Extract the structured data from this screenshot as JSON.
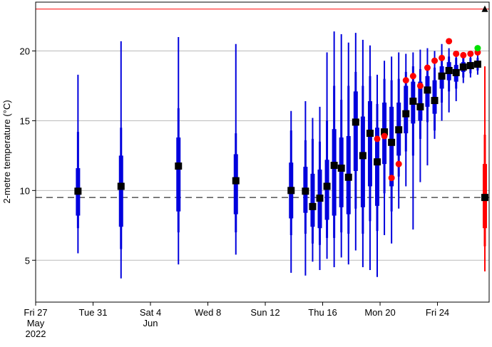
{
  "chart_data": {
    "type": "boxplot-forecast",
    "ylabel": "2-metre temperature (°C)",
    "xlabel": "",
    "ylim": [
      2,
      23.5
    ],
    "xlim": [
      0,
      31.6
    ],
    "y_ticks": [
      5,
      10,
      15,
      20
    ],
    "x_ticks": [
      {
        "day": 0,
        "label": [
          "Fri 27",
          "May",
          "2022"
        ]
      },
      {
        "day": 4,
        "label": [
          "Tue 31"
        ]
      },
      {
        "day": 8,
        "label": [
          "Sat 4",
          "Jun"
        ]
      },
      {
        "day": 12,
        "label": [
          "Wed 8"
        ]
      },
      {
        "day": 16,
        "label": [
          "Sun 12"
        ]
      },
      {
        "day": 20,
        "label": [
          "Thu 16"
        ]
      },
      {
        "day": 24,
        "label": [
          "Mon 20"
        ]
      },
      {
        "day": 28,
        "label": [
          "Fri 24"
        ]
      }
    ],
    "reference_lines": {
      "upper_red_line": 23,
      "dashed_climatology": 9.5
    },
    "boxes": [
      {
        "day": 2.95,
        "min": 5.5,
        "p10": 7.3,
        "p25": 8.2,
        "median": 9.95,
        "p75": 11.6,
        "p90": 14.2,
        "max": 18.3
      },
      {
        "day": 5.95,
        "min": 3.7,
        "p10": 5.8,
        "p25": 7.4,
        "median": 10.3,
        "p75": 12.5,
        "p90": 14.5,
        "max": 20.7
      },
      {
        "day": 9.95,
        "min": 4.7,
        "p10": 7.0,
        "p25": 8.5,
        "median": 11.75,
        "p75": 13.8,
        "p90": 15.9,
        "max": 21.0
      },
      {
        "day": 13.95,
        "min": 5.4,
        "p10": 7.0,
        "p25": 8.3,
        "median": 10.7,
        "p75": 12.6,
        "p90": 14.1,
        "max": 20.5
      },
      {
        "day": 17.8,
        "min": 4.1,
        "p10": 6.8,
        "p25": 8.0,
        "median": 10.0,
        "p75": 12.0,
        "p90": 14.3,
        "max": 15.7
      },
      {
        "day": 18.8,
        "min": 3.9,
        "p10": 6.9,
        "p25": 8.4,
        "median": 9.95,
        "p75": 11.7,
        "p90": 13.6,
        "max": 16.4
      },
      {
        "day": 19.3,
        "min": 4.9,
        "p10": 6.2,
        "p25": 7.4,
        "median": 8.85,
        "p75": 11.2,
        "p90": 13.7,
        "max": 15.2
      },
      {
        "day": 19.8,
        "min": 4.3,
        "p10": 6.1,
        "p25": 7.3,
        "median": 9.45,
        "p75": 11.5,
        "p90": 13.5,
        "max": 16.0
      },
      {
        "day": 20.3,
        "min": 5.1,
        "p10": 6.6,
        "p25": 7.9,
        "median": 10.3,
        "p75": 12.2,
        "p90": 15.0,
        "max": 19.9
      },
      {
        "day": 20.8,
        "min": 4.5,
        "p10": 6.6,
        "p25": 8.2,
        "median": 11.8,
        "p75": 14.4,
        "p90": 17.5,
        "max": 21.4
      },
      {
        "day": 21.3,
        "min": 5.2,
        "p10": 7.0,
        "p25": 8.8,
        "median": 11.6,
        "p75": 13.8,
        "p90": 16.5,
        "max": 21.2
      },
      {
        "day": 21.8,
        "min": 4.7,
        "p10": 6.9,
        "p25": 8.3,
        "median": 10.95,
        "p75": 13.9,
        "p90": 17.5,
        "max": 20.6
      },
      {
        "day": 22.3,
        "min": 5.7,
        "p10": 8.7,
        "p25": 11.4,
        "median": 14.9,
        "p75": 17.1,
        "p90": 18.5,
        "max": 21.3
      },
      {
        "day": 22.8,
        "min": 4.5,
        "p10": 6.9,
        "p25": 8.8,
        "median": 12.5,
        "p75": 15.3,
        "p90": 17.5,
        "max": 20.8
      },
      {
        "day": 23.3,
        "min": 4.3,
        "p10": 7.8,
        "p25": 10.3,
        "median": 14.1,
        "p75": 16.4,
        "p90": 18.2,
        "max": 20.4
      },
      {
        "day": 23.8,
        "min": 3.8,
        "p10": 7.1,
        "p25": 8.9,
        "median": 12.05,
        "p75": 14.5,
        "p90": 16.2,
        "max": 18.3
      },
      {
        "day": 24.3,
        "min": 6.8,
        "p10": 9.8,
        "p25": 11.9,
        "median": 14.2,
        "p75": 16.3,
        "p90": 18.0,
        "max": 19.3
      },
      {
        "day": 24.8,
        "min": 6.2,
        "p10": 8.5,
        "p25": 10.3,
        "median": 13.45,
        "p75": 16.0,
        "p90": 17.9,
        "max": 19.6
      },
      {
        "day": 25.3,
        "min": 8.7,
        "p10": 11.0,
        "p25": 12.5,
        "median": 14.35,
        "p75": 16.3,
        "p90": 18.0,
        "max": 19.9
      },
      {
        "day": 25.8,
        "min": 10.3,
        "p10": 12.8,
        "p25": 14.1,
        "median": 15.5,
        "p75": 17.5,
        "p90": 18.5,
        "max": 19.8
      },
      {
        "day": 26.3,
        "min": 7.2,
        "p10": 12.5,
        "p25": 14.8,
        "median": 16.4,
        "p75": 17.8,
        "p90": 18.9,
        "max": 19.9
      },
      {
        "day": 26.8,
        "min": 10.6,
        "p10": 13.7,
        "p25": 15.0,
        "median": 16.0,
        "p75": 17.8,
        "p90": 18.7,
        "max": 20.1
      },
      {
        "day": 27.3,
        "min": 11.8,
        "p10": 14.9,
        "p25": 16.0,
        "median": 17.2,
        "p75": 18.2,
        "p90": 19.0,
        "max": 20.2
      },
      {
        "day": 27.8,
        "min": 13.7,
        "p10": 14.3,
        "p25": 15.5,
        "median": 16.45,
        "p75": 17.9,
        "p90": 18.8,
        "max": 20.0
      },
      {
        "day": 28.3,
        "min": 15.0,
        "p10": 16.3,
        "p25": 17.3,
        "median": 18.2,
        "p75": 18.9,
        "p90": 19.5,
        "max": 20.5
      },
      {
        "day": 28.8,
        "min": 15.6,
        "p10": 17.1,
        "p25": 17.9,
        "median": 18.6,
        "p75": 19.2,
        "p90": 19.6,
        "max": 20.2
      },
      {
        "day": 29.3,
        "min": 16.4,
        "p10": 17.3,
        "p25": 17.8,
        "median": 18.45,
        "p75": 19.0,
        "p90": 19.5,
        "max": 19.9
      },
      {
        "day": 29.8,
        "min": 17.7,
        "p10": 18.1,
        "p25": 18.5,
        "median": 18.85,
        "p75": 19.2,
        "p90": 19.6,
        "max": 19.9
      },
      {
        "day": 30.3,
        "min": 18.1,
        "p10": 18.4,
        "p25": 18.7,
        "median": 18.95,
        "p75": 19.2,
        "p90": 19.5,
        "max": 19.8
      },
      {
        "day": 30.8,
        "min": 18.3,
        "p10": 18.6,
        "p25": 18.9,
        "median": 19.05,
        "p75": 19.3,
        "p90": 19.5,
        "max": 19.7
      }
    ],
    "observed_red_dots": [
      {
        "day": 23.8,
        "temp": 13.7
      },
      {
        "day": 24.3,
        "temp": 13.9
      },
      {
        "day": 24.8,
        "temp": 10.9
      },
      {
        "day": 25.3,
        "temp": 11.9
      },
      {
        "day": 25.8,
        "temp": 17.9
      },
      {
        "day": 26.3,
        "temp": 18.2
      },
      {
        "day": 26.8,
        "temp": 17.5
      },
      {
        "day": 27.3,
        "temp": 18.8
      },
      {
        "day": 27.8,
        "temp": 19.3
      },
      {
        "day": 28.3,
        "temp": 19.5
      },
      {
        "day": 28.8,
        "temp": 20.7
      },
      {
        "day": 29.3,
        "temp": 19.8
      },
      {
        "day": 29.8,
        "temp": 19.7
      },
      {
        "day": 30.3,
        "temp": 19.8
      },
      {
        "day": 30.8,
        "temp": 19.9
      }
    ],
    "green_dot": {
      "day": 30.8,
      "temp": 20.2
    },
    "climate_box": {
      "day": 31.3,
      "min": 4.2,
      "p10": 6.0,
      "p25": 7.3,
      "median": 9.5,
      "p75": 11.9,
      "p90": 14.0,
      "max": 18.9
    },
    "triangle_marker": {
      "day": 31.3,
      "temp": 23.0
    },
    "colors": {
      "box": "#0000dd",
      "median": "#000000",
      "observed": "#ff0000",
      "green": "#00e000",
      "climate_box": "#ff0000",
      "ref_line": "#ff0000",
      "grid": "#bbbbbb"
    }
  }
}
